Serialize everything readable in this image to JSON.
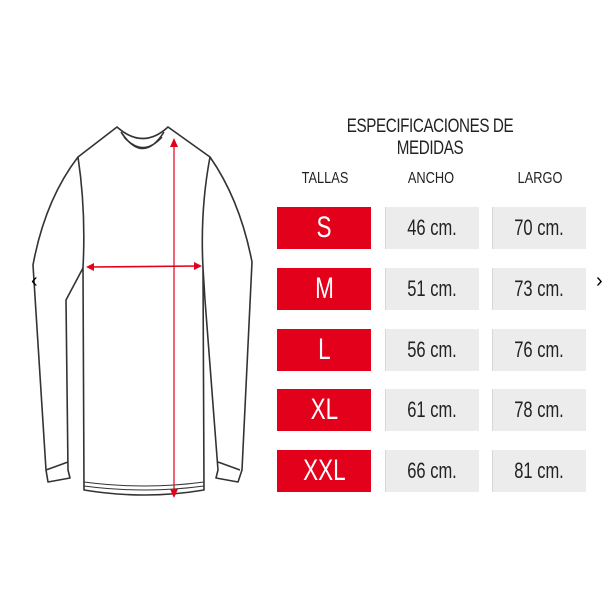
{
  "title": "ESPECIFICACIONES DE MEDIDAS",
  "headers": {
    "tallas": "TALLAS",
    "ancho": "ANCHO",
    "largo": "LARGO"
  },
  "rows": [
    {
      "talla": "S",
      "ancho": "46 cm.",
      "largo": "70 cm."
    },
    {
      "talla": "M",
      "ancho": "51 cm.",
      "largo": "73 cm."
    },
    {
      "talla": "L",
      "ancho": "56 cm.",
      "largo": "76 cm."
    },
    {
      "talla": "XL",
      "ancho": "61 cm.",
      "largo": "78 cm."
    },
    {
      "talla": "XXL",
      "ancho": "66 cm.",
      "largo": "81 cm."
    }
  ],
  "nav": {
    "prev": "‹",
    "next": "›"
  },
  "colors": {
    "accent": "#e2001a",
    "cell": "#ececec"
  }
}
